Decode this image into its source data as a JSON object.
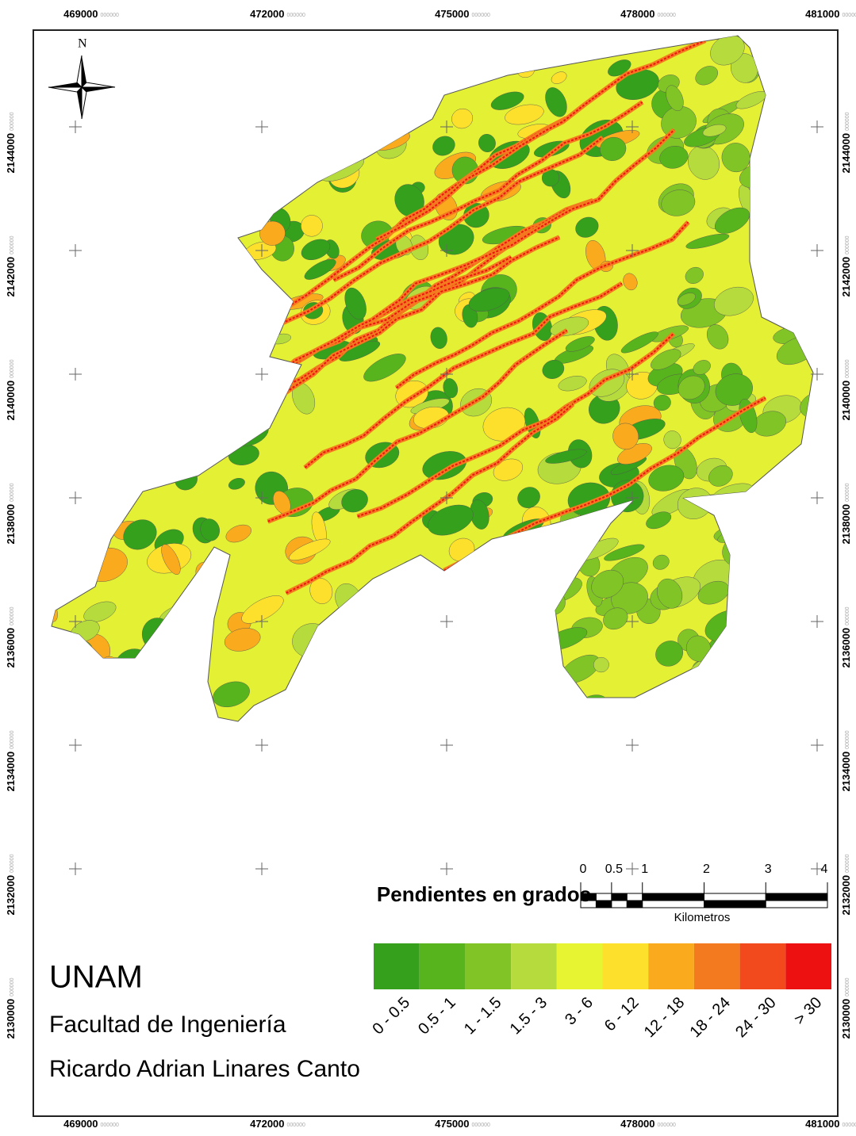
{
  "map": {
    "x_labels": [
      "469000",
      "472000",
      "475000",
      "478000",
      "481000"
    ],
    "y_labels": [
      "2144000",
      "2142000",
      "2140000",
      "2138000",
      "2136000",
      "2134000",
      "2132000",
      "2130000"
    ],
    "label_suffix": "000000",
    "north": "N"
  },
  "legend": {
    "title": "Pendientes en grados",
    "classes": [
      {
        "label": "0 - 0.5",
        "color": "#35a01b"
      },
      {
        "label": "0.5 - 1",
        "color": "#58b41c"
      },
      {
        "label": "1 - 1.5",
        "color": "#80c426"
      },
      {
        "label": "1.5 - 3",
        "color": "#b5dc3c"
      },
      {
        "label": "3 - 6",
        "color": "#e6f431"
      },
      {
        "label": "6 - 12",
        "color": "#fde02c"
      },
      {
        "label": "12 - 18",
        "color": "#f9ab1d"
      },
      {
        "label": "18 - 24",
        "color": "#f47a20"
      },
      {
        "label": "24 - 30",
        "color": "#f24a1c"
      },
      {
        "label": "> 30",
        "color": "#ee1111"
      }
    ]
  },
  "scale_bar": {
    "ticks": [
      0,
      0.5,
      1,
      2,
      3,
      4
    ],
    "unit": "Kilometros"
  },
  "credits": {
    "institution": "UNAM",
    "faculty": "Facultad de Ingeniería",
    "author": "Ricardo Adrian Linares Canto"
  }
}
